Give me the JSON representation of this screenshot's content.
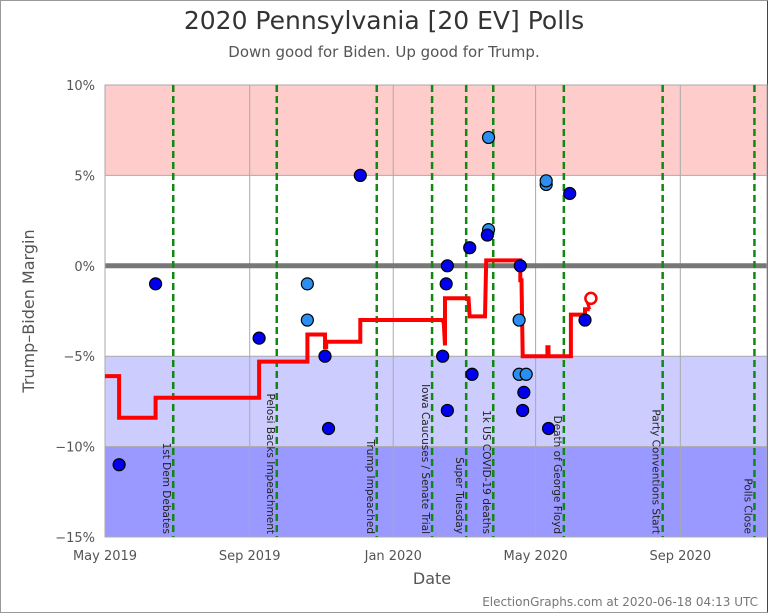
{
  "title": "2020 Pennsylvania [20 EV] Polls",
  "subtitle": "Down good for Biden. Up good for Trump.",
  "footer": "ElectionGraphs.com at 2020-06-18 04:13 UTC",
  "chart_data": {
    "type": "scatter",
    "xlabel": "Date",
    "ylabel": "Trump-Biden Margin",
    "xlim": [
      "2019-05-01",
      "2020-11-10"
    ],
    "ylim": [
      -15,
      10
    ],
    "x_ticks": [
      {
        "date": "2019-05-01",
        "label": "May 2019"
      },
      {
        "date": "2019-09-01",
        "label": "Sep 2019"
      },
      {
        "date": "2020-01-01",
        "label": "Jan 2020"
      },
      {
        "date": "2020-05-01",
        "label": "May 2020"
      },
      {
        "date": "2020-09-01",
        "label": "Sep 2020"
      }
    ],
    "y_ticks": [
      {
        "value": 10,
        "label": "10%"
      },
      {
        "value": 5,
        "label": "5%"
      },
      {
        "value": 0,
        "label": "0%"
      },
      {
        "value": -5,
        "label": "-5%"
      },
      {
        "value": -10,
        "label": "-10%"
      },
      {
        "value": -15,
        "label": "-15%"
      }
    ],
    "grid": true,
    "bands": [
      {
        "from": 5,
        "to": 10,
        "color": "#ffcccc"
      },
      {
        "from": -5,
        "to": 5,
        "color": "#ffffff"
      },
      {
        "from": -10,
        "to": -5,
        "color": "#ccccff"
      },
      {
        "from": -15,
        "to": -10,
        "color": "#9999ff"
      }
    ],
    "colors": {
      "poll_dark": "#0000ee",
      "poll_light": "#2a8ff0",
      "average": "#ff0000",
      "zero_line": "#777777",
      "events": "#118811"
    },
    "events": [
      {
        "date": "2019-06-28",
        "label": "1st Dem Debates"
      },
      {
        "date": "2019-09-24",
        "label": "Pelosi Backs Impeachment"
      },
      {
        "date": "2019-12-18",
        "label": "Trump Impeached"
      },
      {
        "date": "2020-02-03",
        "label": "Iowa Caucuses / Senate Trial"
      },
      {
        "date": "2020-03-03",
        "label": "Super Tuesday"
      },
      {
        "date": "2020-03-26",
        "label": "1k US COVID-19 deaths"
      },
      {
        "date": "2020-05-25",
        "label": "Death of George Floyd"
      },
      {
        "date": "2020-08-17",
        "label": "Party Conventions Start"
      },
      {
        "date": "2020-11-03",
        "label": "Polls Close"
      }
    ],
    "polls": [
      {
        "date": "2019-05-13",
        "margin": -11,
        "shade": "dark"
      },
      {
        "date": "2019-06-13",
        "margin": -1,
        "shade": "dark"
      },
      {
        "date": "2019-09-09",
        "margin": -4,
        "shade": "dark"
      },
      {
        "date": "2019-10-20",
        "margin": -1,
        "shade": "light"
      },
      {
        "date": "2019-10-20",
        "margin": -3,
        "shade": "light"
      },
      {
        "date": "2019-11-04",
        "margin": -5,
        "shade": "dark"
      },
      {
        "date": "2019-11-07",
        "margin": -9,
        "shade": "dark"
      },
      {
        "date": "2019-12-04",
        "margin": 5,
        "shade": "dark"
      },
      {
        "date": "2020-02-12",
        "margin": -5,
        "shade": "dark"
      },
      {
        "date": "2020-02-16",
        "margin": 0,
        "shade": "dark"
      },
      {
        "date": "2020-02-15",
        "margin": -1,
        "shade": "dark"
      },
      {
        "date": "2020-02-16",
        "margin": -8,
        "shade": "dark"
      },
      {
        "date": "2020-03-06",
        "margin": 1,
        "shade": "dark"
      },
      {
        "date": "2020-03-08",
        "margin": -6,
        "shade": "dark"
      },
      {
        "date": "2020-03-22",
        "margin": 7.1,
        "shade": "light"
      },
      {
        "date": "2020-03-22",
        "margin": 2,
        "shade": "light"
      },
      {
        "date": "2020-03-21",
        "margin": 1.7,
        "shade": "dark"
      },
      {
        "date": "2020-04-18",
        "margin": 0,
        "shade": "dark"
      },
      {
        "date": "2020-04-17",
        "margin": -3,
        "shade": "light"
      },
      {
        "date": "2020-04-17",
        "margin": -6,
        "shade": "light"
      },
      {
        "date": "2020-04-23",
        "margin": -6,
        "shade": "light"
      },
      {
        "date": "2020-04-21",
        "margin": -7,
        "shade": "dark"
      },
      {
        "date": "2020-04-20",
        "margin": -8,
        "shade": "dark"
      },
      {
        "date": "2020-05-10",
        "margin": 4.5,
        "shade": "light"
      },
      {
        "date": "2020-05-10",
        "margin": 4.7,
        "shade": "light"
      },
      {
        "date": "2020-05-12",
        "margin": -9,
        "shade": "dark"
      },
      {
        "date": "2020-05-30",
        "margin": 4,
        "shade": "dark"
      },
      {
        "date": "2020-06-12",
        "margin": -3,
        "shade": "dark"
      }
    ],
    "average": [
      [
        "2019-05-01",
        -6.1
      ],
      [
        "2019-05-13",
        -6.1
      ],
      [
        "2019-05-13",
        -8.4
      ],
      [
        "2019-06-13",
        -8.4
      ],
      [
        "2019-06-13",
        -7.3
      ],
      [
        "2019-09-09",
        -7.3
      ],
      [
        "2019-09-09",
        -5.3
      ],
      [
        "2019-10-20",
        -5.3
      ],
      [
        "2019-10-20",
        -3.8
      ],
      [
        "2019-11-04",
        -3.8
      ],
      [
        "2019-11-04",
        -4.5
      ],
      [
        "2019-11-05",
        -4.5
      ],
      [
        "2019-11-05",
        -4.2
      ],
      [
        "2019-12-04",
        -4.2
      ],
      [
        "2019-12-04",
        -3.0
      ],
      [
        "2020-02-12",
        -3.0
      ],
      [
        "2020-02-13",
        -3.2
      ],
      [
        "2020-02-14",
        -4.4
      ],
      [
        "2020-02-14",
        -1.8
      ],
      [
        "2020-03-05",
        -1.8
      ],
      [
        "2020-03-06",
        -2.8
      ],
      [
        "2020-03-19",
        -2.8
      ],
      [
        "2020-03-20",
        0.3
      ],
      [
        "2020-04-18",
        0.3
      ],
      [
        "2020-04-18",
        -0.8
      ],
      [
        "2020-04-19",
        -0.8
      ],
      [
        "2020-04-20",
        -5.0
      ],
      [
        "2020-05-11",
        -5.0
      ],
      [
        "2020-05-11",
        -4.5
      ],
      [
        "2020-05-12",
        -4.5
      ],
      [
        "2020-05-12",
        -5.0
      ],
      [
        "2020-05-31",
        -5.0
      ],
      [
        "2020-05-31",
        -2.7
      ],
      [
        "2020-06-12",
        -2.7
      ],
      [
        "2020-06-12",
        -2.4
      ],
      [
        "2020-06-16",
        -2.4
      ]
    ],
    "current_average": {
      "date": "2020-06-17",
      "margin": -1.8
    }
  }
}
